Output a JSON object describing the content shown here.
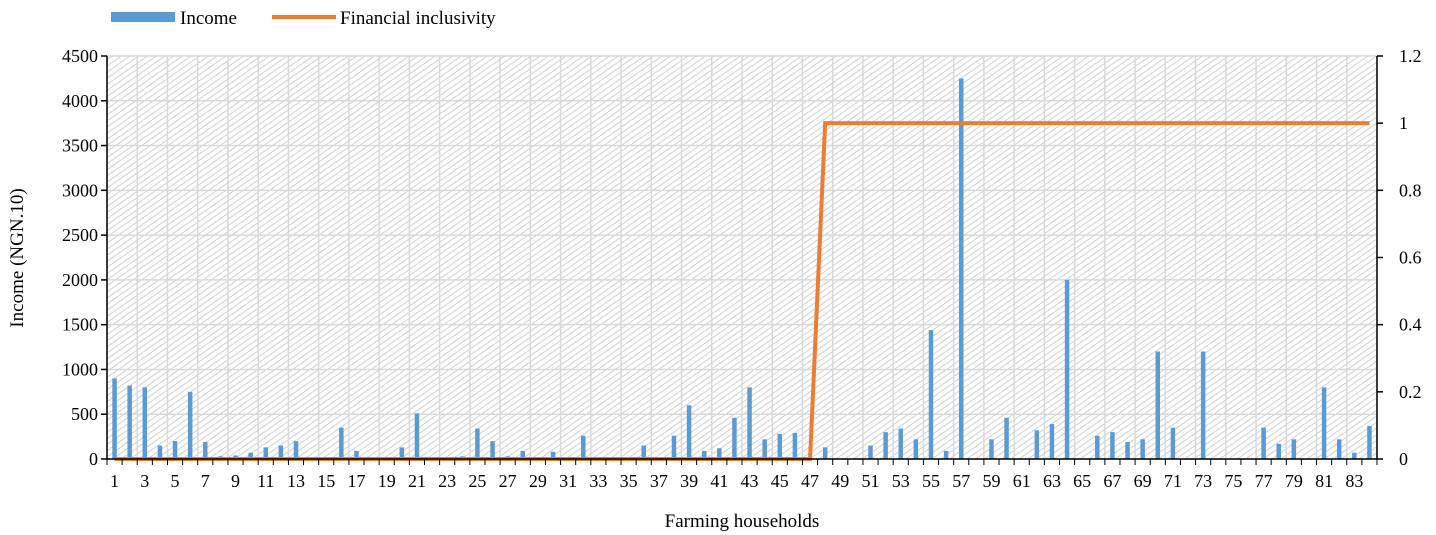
{
  "chart_data": {
    "type": "bar+line",
    "title": "",
    "xlabel": "Farming households",
    "ylabel": "Income (NGN.10)",
    "ylim": [
      0,
      4500
    ],
    "y_ticks": [
      "0",
      "500",
      "1000",
      "1500",
      "2000",
      "2500",
      "3000",
      "3500",
      "4000",
      "4500"
    ],
    "y2lim": [
      0,
      1.2
    ],
    "y2_ticks": [
      "0",
      "0.2",
      "0.4",
      "0.6",
      "0.8",
      "1",
      "1.2"
    ],
    "x_tick_labels": [
      "1",
      "3",
      "5",
      "7",
      "9",
      "11",
      "13",
      "15",
      "17",
      "19",
      "21",
      "23",
      "25",
      "27",
      "29",
      "31",
      "33",
      "35",
      "37",
      "39",
      "41",
      "43",
      "45",
      "47",
      "49",
      "51",
      "53",
      "55",
      "57",
      "59",
      "61",
      "63",
      "65",
      "67",
      "69",
      "71",
      "73",
      "75",
      "77",
      "79",
      "81",
      "83"
    ],
    "x_start": 1,
    "legend": {
      "position": "top-left"
    },
    "grid": true,
    "series": [
      {
        "name": "Income",
        "kind": "bar",
        "axis": "left",
        "color": "#5B9BD5",
        "values": [
          900,
          820,
          800,
          150,
          200,
          750,
          190,
          30,
          40,
          70,
          130,
          150,
          200,
          0,
          0,
          350,
          90,
          0,
          0,
          130,
          510,
          0,
          0,
          30,
          340,
          200,
          30,
          90,
          0,
          80,
          0,
          260,
          0,
          0,
          0,
          150,
          0,
          260,
          600,
          90,
          120,
          460,
          800,
          220,
          280,
          290,
          0,
          130,
          0,
          0,
          150,
          300,
          340,
          220,
          1440,
          90,
          4250,
          0,
          220,
          460,
          0,
          320,
          390,
          2000,
          0,
          260,
          300,
          190,
          220,
          1200,
          350,
          0,
          1200,
          0,
          0,
          0,
          350,
          170,
          220,
          0,
          800,
          220,
          70,
          370
        ]
      },
      {
        "name": "Financial inclusivity",
        "kind": "line",
        "axis": "right",
        "color": "#ED7D31",
        "values": [
          0,
          0,
          0,
          0,
          0,
          0,
          0,
          0,
          0,
          0,
          0,
          0,
          0,
          0,
          0,
          0,
          0,
          0,
          0,
          0,
          0,
          0,
          0,
          0,
          0,
          0,
          0,
          0,
          0,
          0,
          0,
          0,
          0,
          0,
          0,
          0,
          0,
          0,
          0,
          0,
          0,
          0,
          0,
          0,
          0,
          0,
          0,
          1,
          1,
          1,
          1,
          1,
          1,
          1,
          1,
          1,
          1,
          1,
          1,
          1,
          1,
          1,
          1,
          1,
          1,
          1,
          1,
          1,
          1,
          1,
          1,
          1,
          1,
          1,
          1,
          1,
          1,
          1,
          1,
          1,
          1,
          1,
          1,
          1
        ]
      }
    ]
  }
}
